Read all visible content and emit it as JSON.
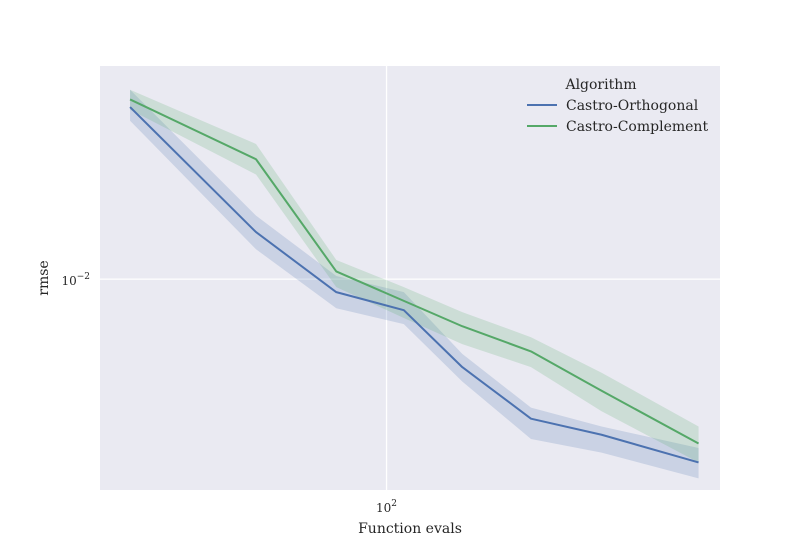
{
  "chart_data": {
    "type": "line",
    "xlabel": "Function evals",
    "ylabel": "rmse",
    "xscale": "log",
    "yscale": "log",
    "xlim": [
      28,
      440
    ],
    "ylim": [
      0.0026,
      0.039
    ],
    "grid": true,
    "x_tick_labels": [
      {
        "value": 100,
        "base": "10",
        "exp": "2"
      }
    ],
    "y_tick_labels": [
      {
        "value": 0.01,
        "base": "10",
        "exp": "−2"
      }
    ],
    "legend": {
      "title": "Algorithm",
      "placement": "top-right"
    },
    "x": [
      32,
      56,
      80,
      108,
      140,
      190,
      260,
      400
    ],
    "series": [
      {
        "name": "Castro-Orthogonal",
        "color": "#4c72b0",
        "values": [
          0.03,
          0.0135,
          0.0092,
          0.0082,
          0.0057,
          0.0041,
          0.0037,
          0.0031
        ],
        "ci_low": [
          0.0275,
          0.0121,
          0.0083,
          0.0075,
          0.0052,
          0.0036,
          0.0033,
          0.0028
        ],
        "ci_high": [
          0.0335,
          0.015,
          0.0102,
          0.0092,
          0.0062,
          0.0044,
          0.0039,
          0.0034
        ]
      },
      {
        "name": "Castro-Complement",
        "color": "#55a868",
        "values": [
          0.0315,
          0.0215,
          0.0105,
          0.0087,
          0.0074,
          0.0063,
          0.0049,
          0.0035
        ],
        "ci_low": [
          0.0295,
          0.0195,
          0.0095,
          0.0078,
          0.0066,
          0.0057,
          0.0043,
          0.0031
        ],
        "ci_high": [
          0.0335,
          0.0237,
          0.0113,
          0.0095,
          0.0081,
          0.0069,
          0.0055,
          0.0039
        ]
      }
    ]
  },
  "colors": {
    "plot_background": "#eaeaf2",
    "grid": "#ffffff"
  }
}
